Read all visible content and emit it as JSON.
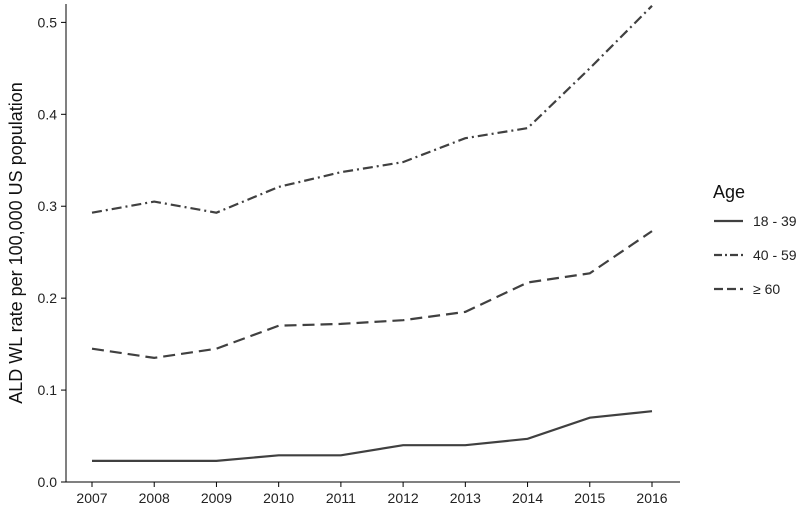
{
  "chart_data": {
    "type": "line",
    "title": "",
    "xlabel": "",
    "ylabel": "ALD WL rate per 100,000 US population",
    "x": [
      "2007",
      "2008",
      "2009",
      "2010",
      "2011",
      "2012",
      "2013",
      "2014",
      "2015",
      "2016"
    ],
    "ylim": [
      0,
      0.52
    ],
    "yticks": [
      "0.0",
      "0.1",
      "0.2",
      "0.3",
      "0.4",
      "0.5"
    ],
    "grid": false,
    "legend": {
      "title": "Age",
      "position": "right"
    },
    "series": [
      {
        "name": "18 - 39",
        "dash": "solid",
        "values": [
          0.023,
          0.023,
          0.023,
          0.029,
          0.029,
          0.04,
          0.04,
          0.047,
          0.07,
          0.077
        ]
      },
      {
        "name": "40 - 59",
        "dash": "dash-dot",
        "values": [
          0.293,
          0.305,
          0.293,
          0.321,
          0.337,
          0.348,
          0.374,
          0.385,
          0.45,
          0.518
        ]
      },
      {
        "name": "≥ 60",
        "dash": "dashed",
        "values": [
          0.145,
          0.135,
          0.145,
          0.17,
          0.172,
          0.176,
          0.185,
          0.217,
          0.227,
          0.273
        ]
      }
    ],
    "line_color": "#404040"
  }
}
